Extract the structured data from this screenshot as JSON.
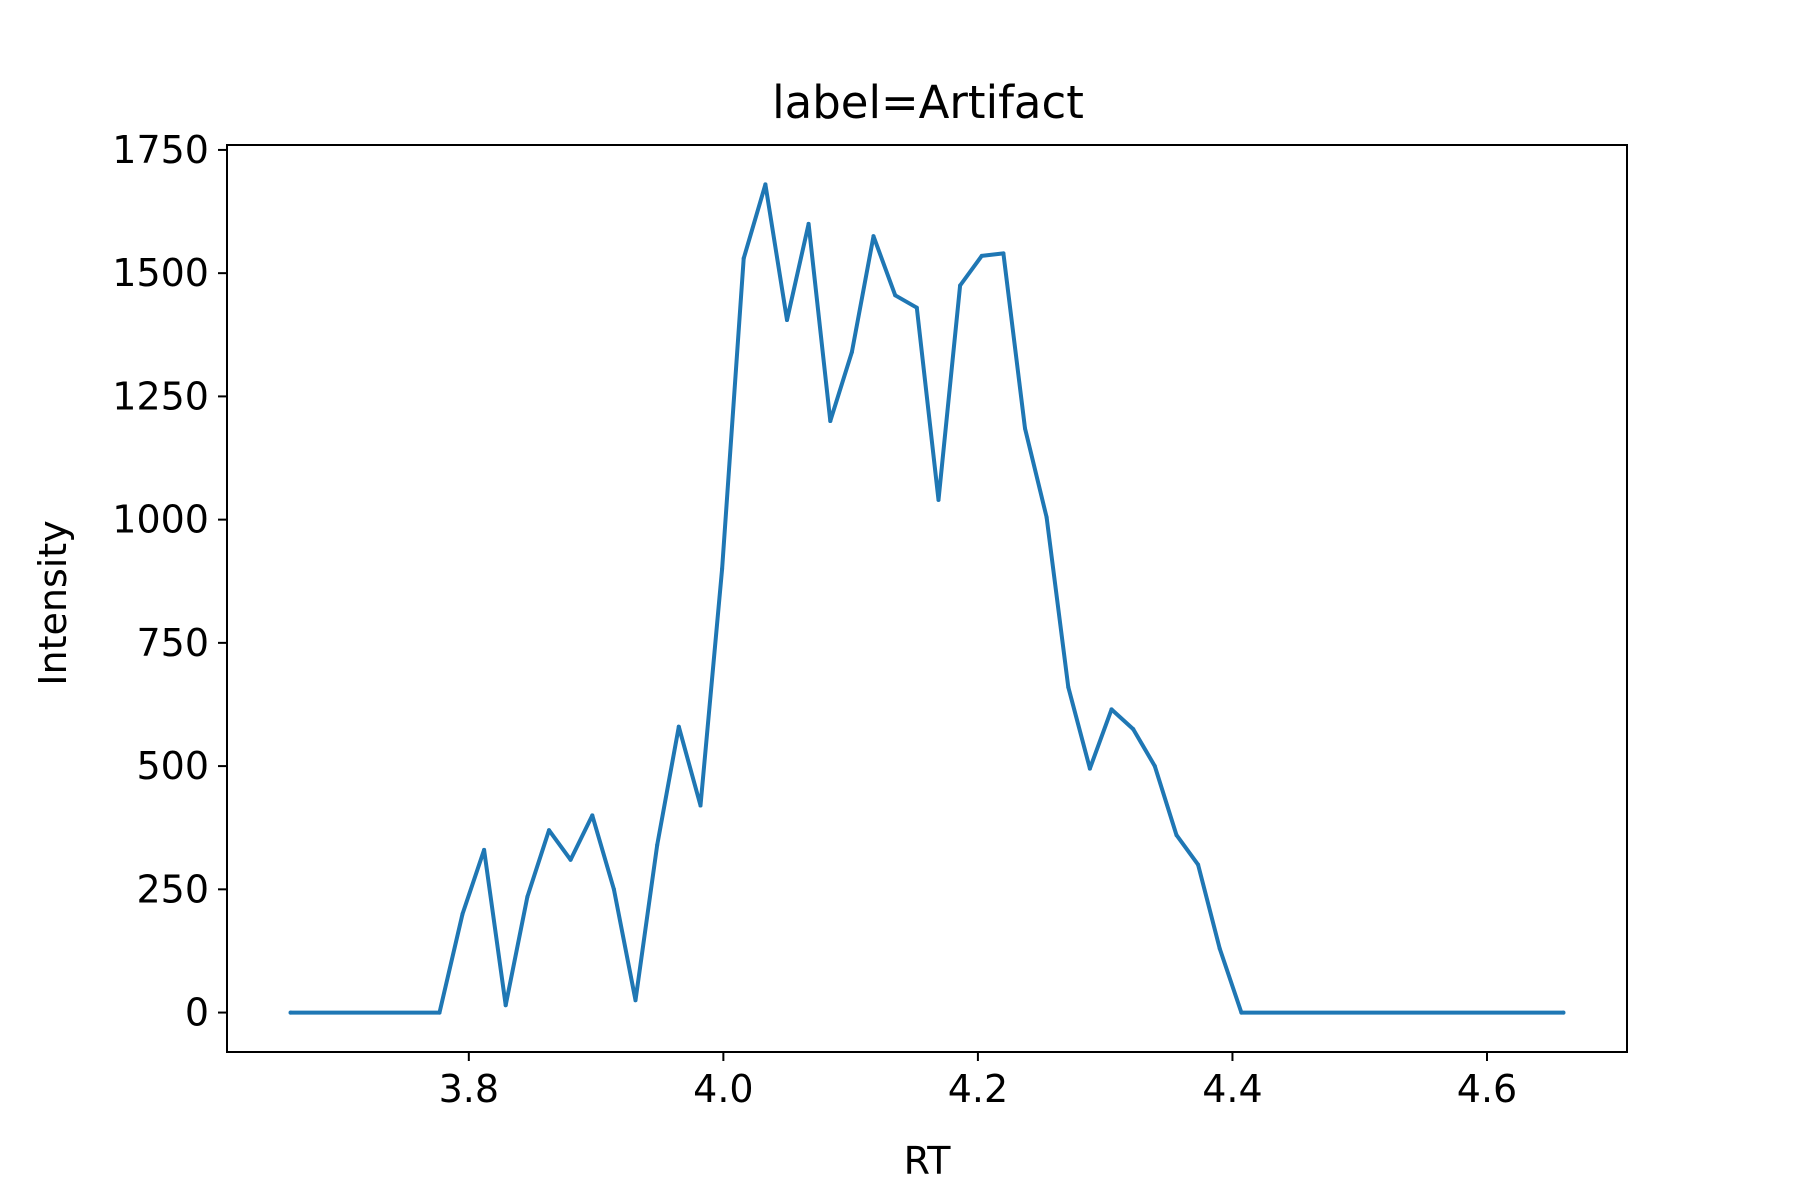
{
  "chart_data": {
    "type": "line",
    "title": "label=Artifact",
    "xlabel": "RT",
    "ylabel": "Intensity",
    "xlim": [
      3.61,
      4.71
    ],
    "ylim": [
      -80,
      1760
    ],
    "xticks": [
      3.8,
      4.0,
      4.2,
      4.4,
      4.6
    ],
    "xtick_labels": [
      "3.8",
      "4.0",
      "4.2",
      "4.4",
      "4.6"
    ],
    "yticks": [
      0,
      250,
      500,
      750,
      1000,
      1250,
      1500,
      1750
    ],
    "ytick_labels": [
      "0",
      "250",
      "500",
      "750",
      "1000",
      "1250",
      "1500",
      "1750"
    ],
    "grid": false,
    "color": "#1f77b4",
    "x": [
      3.66,
      3.777,
      3.795,
      3.812,
      3.829,
      3.846,
      3.863,
      3.88,
      3.897,
      3.914,
      3.931,
      3.948,
      3.965,
      3.982,
      3.999,
      4.016,
      4.033,
      4.05,
      4.067,
      4.084,
      4.101,
      4.118,
      4.135,
      4.152,
      4.169,
      4.186,
      4.203,
      4.22,
      4.237,
      4.254,
      4.271,
      4.288,
      4.305,
      4.322,
      4.339,
      4.356,
      4.373,
      4.39,
      4.407,
      4.66
    ],
    "y": [
      0,
      0,
      200,
      330,
      15,
      235,
      370,
      310,
      400,
      250,
      25,
      340,
      580,
      420,
      900,
      1530,
      1680,
      1405,
      1600,
      1200,
      1340,
      1575,
      1455,
      1430,
      1040,
      1475,
      1535,
      1540,
      1185,
      1005,
      660,
      495,
      615,
      575,
      500,
      360,
      300,
      130,
      0,
      0
    ]
  }
}
